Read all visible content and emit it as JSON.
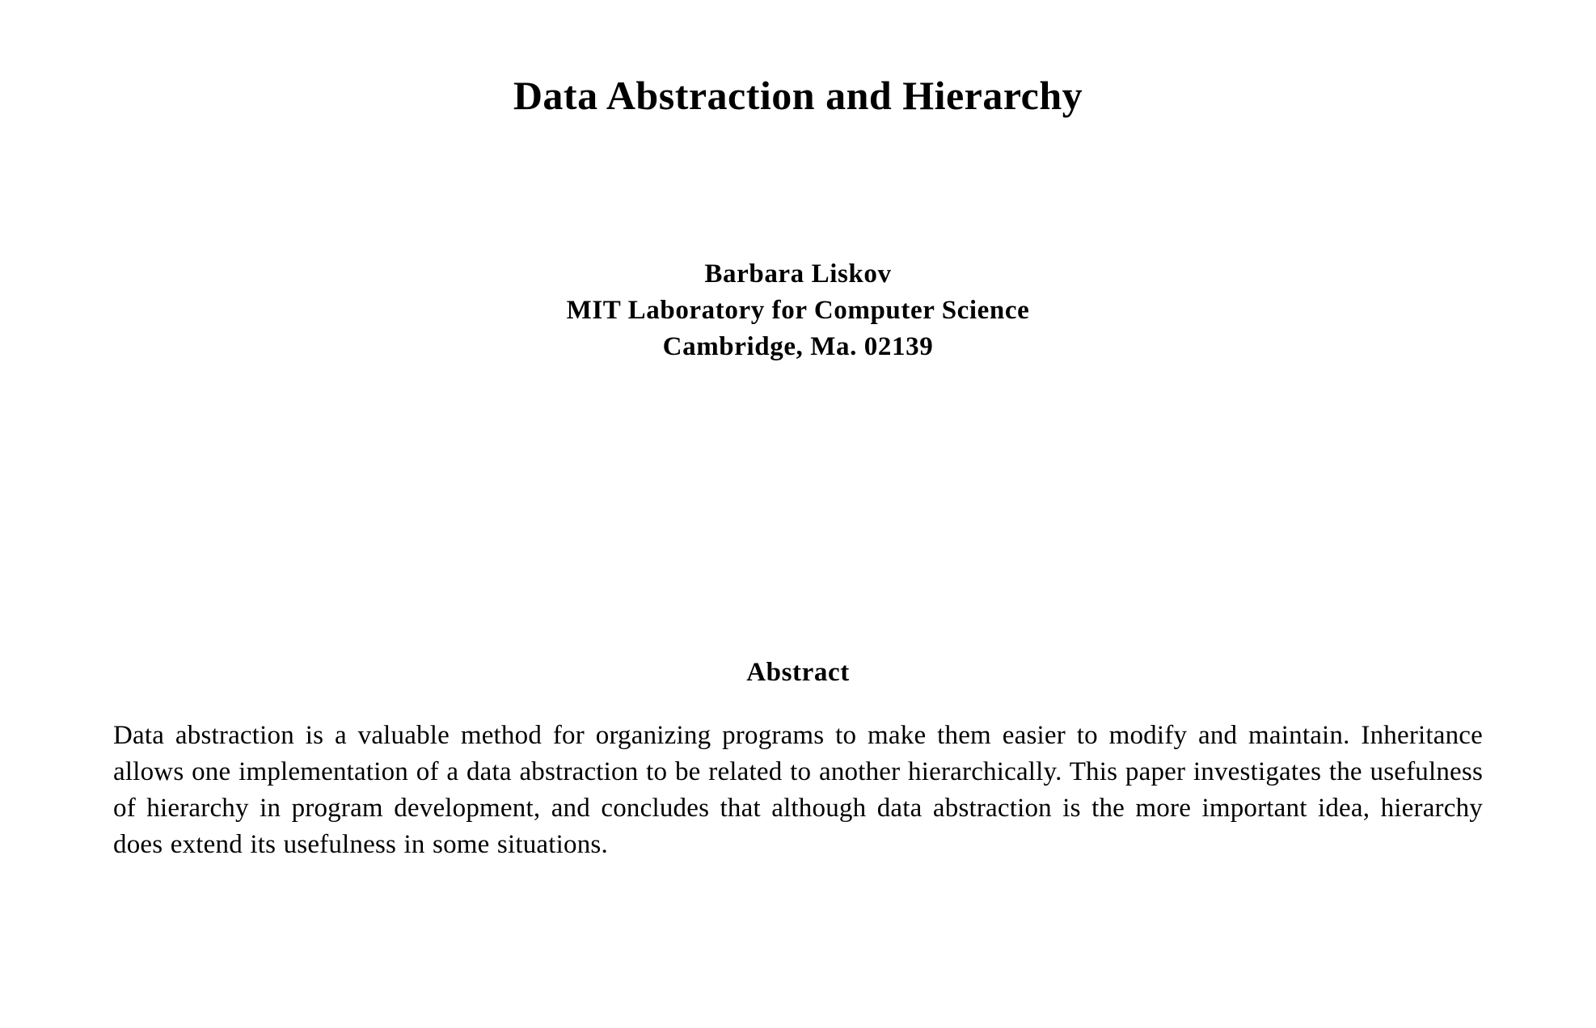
{
  "paper": {
    "title": "Data Abstraction and Hierarchy",
    "author": "Barbara Liskov",
    "affiliation": "MIT Laboratory for Computer Science",
    "address": "Cambridge, Ma. 02139",
    "abstract_heading": "Abstract",
    "abstract_text": "Data abstraction is a valuable method for organizing programs to make them easier to modify and maintain.  Inheritance allows one implementation of a data abstraction to be related to another hierarchically.  This paper investigates the usefulness of hierarchy in program development, and concludes that although data abstraction is the more important idea, hierarchy does extend its usefulness in some situations."
  }
}
